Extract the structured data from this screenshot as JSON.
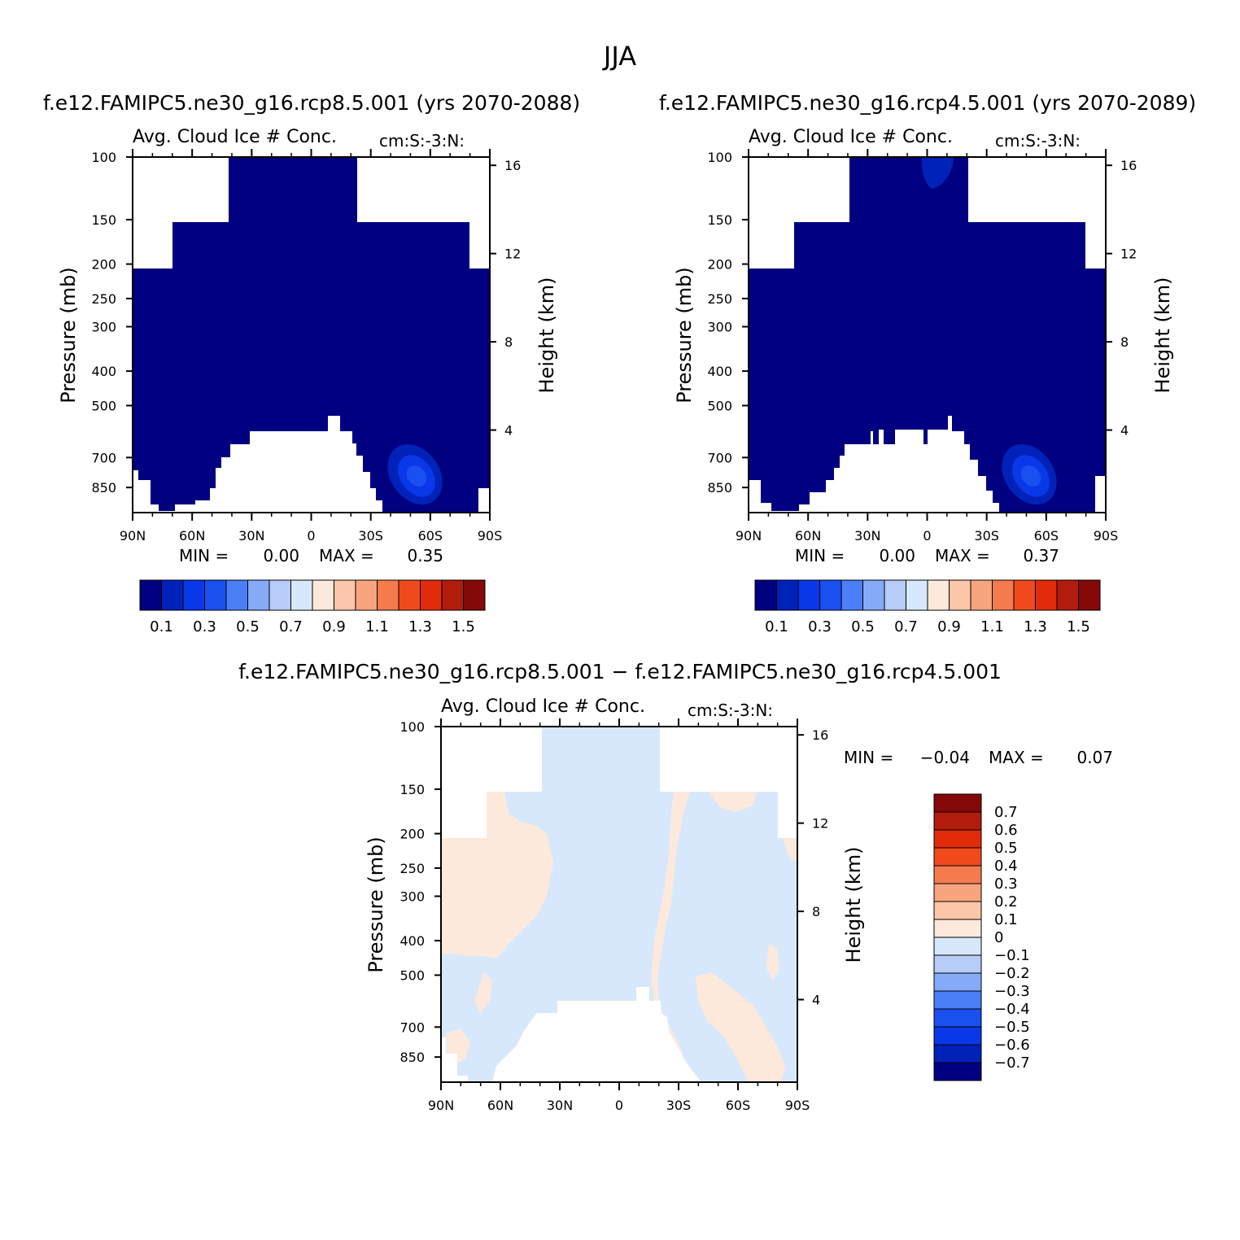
{
  "chart_data": [
    {
      "type": "heatmap",
      "figure_title": "JJA",
      "case_title": "f.e12.FAMIPC5.ne30_g16.rcp8.5.001 (yrs 2070-2088)",
      "plot_title": "Avg. Cloud Ice # Conc.",
      "units": "cm:S:-3:N:",
      "xlabel": "",
      "ylabel": "Pressure (mb)",
      "ylabel_right": "Height (km)",
      "x_ticks": [
        "90N",
        "60N",
        "30N",
        "0",
        "30S",
        "60S",
        "90S"
      ],
      "y_ticks": [
        100,
        150,
        200,
        250,
        300,
        400,
        500,
        700,
        850
      ],
      "y_ticks_right": [
        16,
        12,
        8,
        4
      ],
      "ylim": [
        1000,
        100
      ],
      "min_label": "MIN =",
      "min": "0.00",
      "max_label": "MAX =",
      "max": "0.35",
      "colorbar": {
        "labels": [
          "0.1",
          "0.3",
          "0.5",
          "0.7",
          "0.9",
          "1.1",
          "1.3",
          "1.5"
        ],
        "levels": [
          0.1,
          0.2,
          0.3,
          0.4,
          0.5,
          0.6,
          0.7,
          0.8,
          0.9,
          1.0,
          1.1,
          1.2,
          1.3,
          1.4,
          1.5
        ],
        "colors": [
          "#000080",
          "#0022b8",
          "#0938e8",
          "#1a4ff0",
          "#4a7ff8",
          "#84aaf8",
          "#b7ccf8",
          "#d8e8fc",
          "#fde9dc",
          "#fcc6a8",
          "#f8a47e",
          "#f57a4e",
          "#f04a1c",
          "#e02c0a",
          "#b21c0c",
          "#850808"
        ]
      }
    },
    {
      "type": "heatmap",
      "case_title": "f.e12.FAMIPC5.ne30_g16.rcp4.5.001 (yrs 2070-2089)",
      "plot_title": "Avg. Cloud Ice # Conc.",
      "units": "cm:S:-3:N:",
      "ylabel": "Pressure (mb)",
      "ylabel_right": "Height (km)",
      "x_ticks": [
        "90N",
        "60N",
        "30N",
        "0",
        "30S",
        "60S",
        "90S"
      ],
      "y_ticks": [
        100,
        150,
        200,
        250,
        300,
        400,
        500,
        700,
        850
      ],
      "y_ticks_right": [
        16,
        12,
        8,
        4
      ],
      "ylim": [
        1000,
        100
      ],
      "min_label": "MIN =",
      "min": "0.00",
      "max_label": "MAX =",
      "max": "0.37",
      "colorbar": {
        "labels": [
          "0.1",
          "0.3",
          "0.5",
          "0.7",
          "0.9",
          "1.1",
          "1.3",
          "1.5"
        ]
      }
    },
    {
      "type": "heatmap",
      "case_title": "f.e12.FAMIPC5.ne30_g16.rcp8.5.001 − f.e12.FAMIPC5.ne30_g16.rcp4.5.001",
      "plot_title": "Avg. Cloud Ice # Conc.",
      "units": "cm:S:-3:N:",
      "ylabel": "Pressure (mb)",
      "ylabel_right": "Height (km)",
      "x_ticks": [
        "90N",
        "60N",
        "30N",
        "0",
        "30S",
        "60S",
        "90S"
      ],
      "y_ticks": [
        100,
        150,
        200,
        250,
        300,
        400,
        500,
        700,
        850
      ],
      "y_ticks_right": [
        16,
        12,
        8,
        4
      ],
      "ylim": [
        1000,
        100
      ],
      "min_label": "MIN =",
      "min": "−0.04",
      "max_label": "MAX =",
      "max": "0.07",
      "colorbar": {
        "labels": [
          "0.7",
          "0.6",
          "0.5",
          "0.4",
          "0.3",
          "0.2",
          "0.1",
          "0",
          "−0.1",
          "−0.2",
          "−0.3",
          "−0.4",
          "−0.5",
          "−0.6",
          "−0.7"
        ],
        "colors": [
          "#850808",
          "#b21c0c",
          "#e02c0a",
          "#f04a1c",
          "#f57a4e",
          "#f8a47e",
          "#fcc6a8",
          "#fde9dc",
          "#d8e8fc",
          "#b7ccf8",
          "#84aaf8",
          "#4a7ff8",
          "#1a4ff0",
          "#0938e8",
          "#0022b8",
          "#000080"
        ]
      }
    }
  ]
}
